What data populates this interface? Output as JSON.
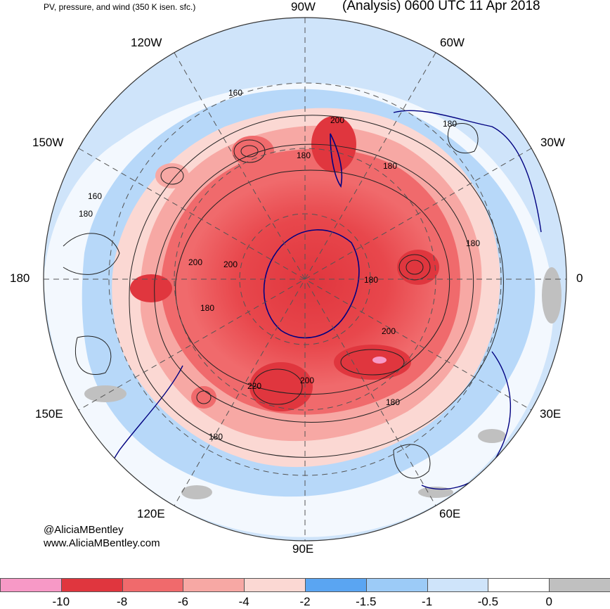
{
  "header": {
    "subtitle": "PV, pressure, and wind (350 K isen. sfc.)",
    "title": "(Analysis) 0600 UTC 11 Apr 2018"
  },
  "longitude_labels": {
    "lon_90w": "90W",
    "lon_120w": "120W",
    "lon_60w": "60W",
    "lon_150w": "150W",
    "lon_30w": "30W",
    "lon_180": "180",
    "lon_0": "0",
    "lon_150e": "150E",
    "lon_30e": "30E",
    "lon_120e": "120E",
    "lon_60e": "60E",
    "lon_90e": "90E"
  },
  "contour_labels": [
    "160",
    "200",
    "180",
    "180",
    "180",
    "160",
    "180",
    "180",
    "200",
    "200",
    "180",
    "180",
    "200",
    "180",
    "220",
    "200",
    "180"
  ],
  "credits": {
    "line1": "@AliciaMBentley",
    "line2": "www.AliciaMBentley.com"
  },
  "colorbar": {
    "colors": [
      "#f799c6",
      "#e0363e",
      "#f06a6c",
      "#f7a8a4",
      "#fbd8d3",
      "#5aa5f2",
      "#9ccbf7",
      "#cfe4fa",
      "#ffffff",
      "#c0c0c0"
    ],
    "ticks": [
      "-10",
      "-8",
      "-6",
      "-4",
      "-2",
      "-1.5",
      "-1",
      "-0.5",
      "0"
    ]
  }
}
